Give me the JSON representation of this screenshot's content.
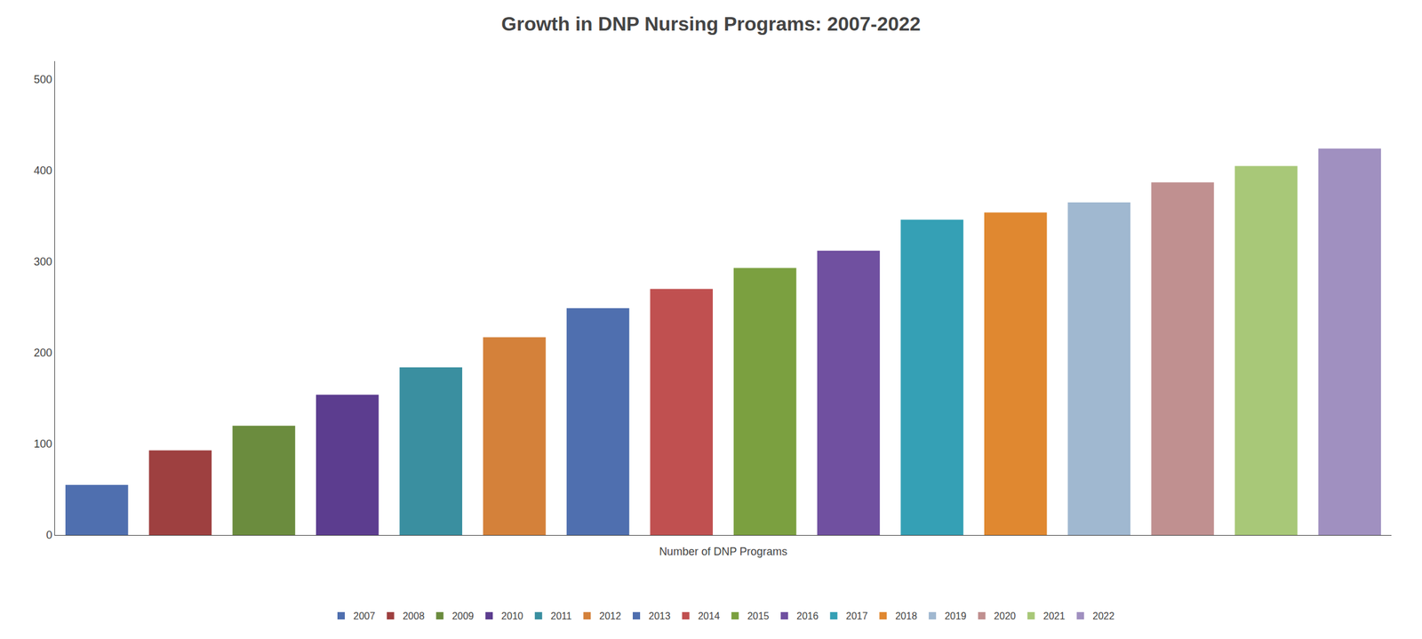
{
  "chart_data": {
    "type": "bar",
    "title": "Growth in DNP Nursing Programs: 2007-2022",
    "xlabel": "Number of DNP Programs",
    "categories": [
      "2007",
      "2008",
      "2009",
      "2010",
      "2011",
      "2012",
      "2013",
      "2014",
      "2015",
      "2016",
      "2017",
      "2018",
      "2019",
      "2020",
      "2021",
      "2022"
    ],
    "values": [
      55,
      93,
      120,
      154,
      184,
      217,
      249,
      270,
      293,
      312,
      346,
      354,
      365,
      387,
      405,
      424
    ],
    "colors": [
      "#4F6FAF",
      "#9E4040",
      "#6B8C3E",
      "#5C3D8F",
      "#3A8FA0",
      "#D4813A",
      "#4F6FAF",
      "#C05050",
      "#7BA040",
      "#7050A0",
      "#35A0B5",
      "#E08830",
      "#A0B8D0",
      "#C09090",
      "#A8C878",
      "#A090C0"
    ],
    "ylim": [
      0,
      520
    ],
    "yticks": [
      0,
      100,
      200,
      300,
      400,
      500
    ],
    "grid": false,
    "legend": "bottom",
    "tick_labels": "y"
  }
}
